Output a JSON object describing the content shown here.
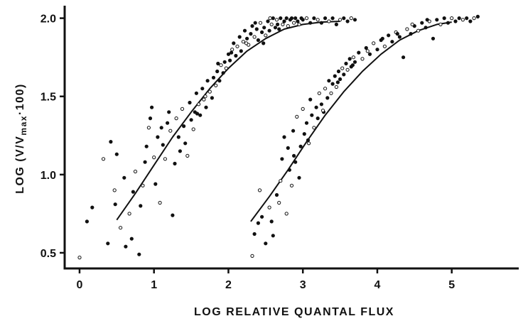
{
  "chart_data": {
    "type": "scatter",
    "xlabel": "LOG RELATIVE QUANTAL FLUX",
    "ylabel": {
      "prefix": "LOG (V/V",
      "subscript": "max",
      "suffix": "·100)"
    },
    "xlim": [
      -0.2,
      5.9
    ],
    "ylim": [
      0.4,
      2.08
    ],
    "x_ticks": [
      0,
      1,
      2,
      3,
      4,
      5
    ],
    "x_tick_labels": [
      "0",
      "1",
      "2",
      "3",
      "4",
      "5"
    ],
    "y_ticks": [
      0.5,
      1.0,
      1.5,
      2.0
    ],
    "y_tick_labels": [
      "0.5",
      "1.0",
      "1.5",
      "2.0"
    ],
    "grid": false,
    "colors": {
      "ink": "#111111",
      "background": "#ffffff"
    },
    "series": [
      {
        "points": [
          [
            0.0,
            0.47
          ],
          [
            0.1,
            0.7
          ],
          [
            0.17,
            0.79
          ],
          [
            0.32,
            1.1
          ],
          [
            0.38,
            0.56
          ],
          [
            0.42,
            1.21
          ],
          [
            0.47,
            0.9
          ],
          [
            0.48,
            0.81
          ],
          [
            0.5,
            1.13
          ],
          [
            0.55,
            0.66
          ],
          [
            0.6,
            0.98
          ],
          [
            0.62,
            0.54
          ],
          [
            0.67,
            0.75
          ],
          [
            0.7,
            0.59
          ],
          [
            0.72,
            0.89
          ],
          [
            0.75,
            1.02
          ],
          [
            0.8,
            0.49
          ],
          [
            0.82,
            0.8
          ],
          [
            0.85,
            0.93
          ],
          [
            0.88,
            1.08
          ],
          [
            0.9,
            1.18
          ],
          [
            0.93,
            1.3
          ],
          [
            0.95,
            1.36
          ],
          [
            0.97,
            1.43
          ],
          [
            1.0,
            1.11
          ],
          [
            1.02,
            0.94
          ],
          [
            1.05,
            1.24
          ],
          [
            1.08,
            0.82
          ],
          [
            1.1,
            1.3
          ],
          [
            1.12,
            1.19
          ],
          [
            1.15,
            1.1
          ],
          [
            1.18,
            1.33
          ],
          [
            1.2,
            1.4
          ],
          [
            1.22,
            1.28
          ],
          [
            1.25,
            0.74
          ],
          [
            1.28,
            1.07
          ],
          [
            1.3,
            1.36
          ],
          [
            1.33,
            1.24
          ],
          [
            1.35,
            1.15
          ],
          [
            1.38,
            1.42
          ],
          [
            1.4,
            1.31
          ],
          [
            1.42,
            1.2
          ],
          [
            1.45,
            1.12
          ],
          [
            1.48,
            1.46
          ],
          [
            1.5,
            1.35
          ],
          [
            1.53,
            1.29
          ],
          [
            1.55,
            1.4
          ],
          [
            1.57,
            1.52
          ],
          [
            1.6,
            1.45
          ],
          [
            1.62,
            1.38
          ],
          [
            1.65,
            1.55
          ],
          [
            1.67,
            1.48
          ],
          [
            1.7,
            1.43
          ],
          [
            1.72,
            1.6
          ],
          [
            1.75,
            1.53
          ],
          [
            1.78,
            1.49
          ],
          [
            1.8,
            1.62
          ],
          [
            1.83,
            1.57
          ],
          [
            1.85,
            1.66
          ],
          [
            1.88,
            1.6
          ],
          [
            1.9,
            1.7
          ],
          [
            1.93,
            1.65
          ],
          [
            1.95,
            1.72
          ],
          [
            1.97,
            1.68
          ],
          [
            2.0,
            1.77
          ],
          [
            2.02,
            1.73
          ],
          [
            2.05,
            1.8
          ],
          [
            2.07,
            1.84
          ],
          [
            2.1,
            1.76
          ],
          [
            2.12,
            1.82
          ],
          [
            2.15,
            1.88
          ],
          [
            2.17,
            1.79
          ],
          [
            2.2,
            1.85
          ],
          [
            2.22,
            1.92
          ],
          [
            2.25,
            1.87
          ],
          [
            2.27,
            1.83
          ],
          [
            2.3,
            1.9
          ],
          [
            2.32,
            1.95
          ],
          [
            2.35,
            1.88
          ],
          [
            2.38,
            1.93
          ],
          [
            2.4,
            1.86
          ],
          [
            2.43,
            1.97
          ],
          [
            2.45,
            1.91
          ],
          [
            2.48,
            1.94
          ],
          [
            2.5,
            1.89
          ],
          [
            2.53,
            1.98
          ],
          [
            2.55,
            1.92
          ],
          [
            2.58,
            1.96
          ],
          [
            2.6,
            2.0
          ],
          [
            2.63,
            1.94
          ],
          [
            2.65,
            1.99
          ],
          [
            2.68,
            1.93
          ],
          [
            2.7,
            2.0
          ],
          [
            2.73,
            1.96
          ],
          [
            2.75,
            1.98
          ],
          [
            2.78,
            2.0
          ],
          [
            2.8,
            1.95
          ],
          [
            2.83,
            1.99
          ],
          [
            2.85,
            2.0
          ],
          [
            2.88,
            1.97
          ],
          [
            2.9,
            2.0
          ],
          [
            2.93,
            1.98
          ],
          [
            2.95,
            1.96
          ],
          [
            2.98,
            2.0
          ],
          [
            3.0,
            1.99
          ],
          [
            3.05,
            2.0
          ],
          [
            3.1,
            1.97
          ],
          [
            3.15,
            2.0
          ],
          [
            3.2,
            1.99
          ],
          [
            3.25,
            1.97
          ],
          [
            3.3,
            2.0
          ],
          [
            3.35,
            1.98
          ],
          [
            3.4,
            2.0
          ],
          [
            3.45,
            1.96
          ],
          [
            3.5,
            1.99
          ],
          [
            3.55,
            2.0
          ],
          [
            3.6,
            1.98
          ],
          [
            3.65,
            2.0
          ],
          [
            3.7,
            1.99
          ],
          [
            1.58,
            1.39
          ],
          [
            1.69,
            1.5
          ],
          [
            1.86,
            1.71
          ],
          [
            2.04,
            1.78
          ],
          [
            2.24,
            1.84
          ],
          [
            2.36,
            1.97
          ],
          [
            2.47,
            1.84
          ],
          [
            2.56,
            2.0
          ],
          [
            2.66,
            1.96
          ]
        ],
        "fit": [
          [
            0.5,
            0.71
          ],
          [
            0.75,
            0.88
          ],
          [
            1.0,
            1.06
          ],
          [
            1.25,
            1.24
          ],
          [
            1.5,
            1.4
          ],
          [
            1.75,
            1.55
          ],
          [
            2.0,
            1.68
          ],
          [
            2.25,
            1.79
          ],
          [
            2.5,
            1.87
          ],
          [
            2.75,
            1.93
          ],
          [
            3.0,
            1.96
          ],
          [
            3.25,
            1.975
          ],
          [
            3.5,
            1.98
          ]
        ]
      },
      {
        "points": [
          [
            2.32,
            0.48
          ],
          [
            2.35,
            0.62
          ],
          [
            2.4,
            0.69
          ],
          [
            2.42,
            0.9
          ],
          [
            2.45,
            0.73
          ],
          [
            2.5,
            0.56
          ],
          [
            2.55,
            0.79
          ],
          [
            2.6,
            0.61
          ],
          [
            2.65,
            0.87
          ],
          [
            2.7,
            0.96
          ],
          [
            2.72,
            1.1
          ],
          [
            2.75,
            1.24
          ],
          [
            2.78,
            0.75
          ],
          [
            2.8,
            1.17
          ],
          [
            2.82,
            1.03
          ],
          [
            2.85,
            0.93
          ],
          [
            2.87,
            1.28
          ],
          [
            2.9,
            1.08
          ],
          [
            2.92,
            1.37
          ],
          [
            2.95,
            0.98
          ],
          [
            2.97,
            1.18
          ],
          [
            3.0,
            1.42
          ],
          [
            3.02,
            1.26
          ],
          [
            3.05,
            1.33
          ],
          [
            3.08,
            1.2
          ],
          [
            3.1,
            1.48
          ],
          [
            3.12,
            1.38
          ],
          [
            3.15,
            1.3
          ],
          [
            3.18,
            1.43
          ],
          [
            3.2,
            1.36
          ],
          [
            3.22,
            1.52
          ],
          [
            3.25,
            1.45
          ],
          [
            3.28,
            1.4
          ],
          [
            3.3,
            1.55
          ],
          [
            3.33,
            1.49
          ],
          [
            3.35,
            1.6
          ],
          [
            3.38,
            1.52
          ],
          [
            3.4,
            1.58
          ],
          [
            3.43,
            1.63
          ],
          [
            3.45,
            1.56
          ],
          [
            3.48,
            1.66
          ],
          [
            3.5,
            1.61
          ],
          [
            3.53,
            1.68
          ],
          [
            3.55,
            1.64
          ],
          [
            3.58,
            1.71
          ],
          [
            3.6,
            1.67
          ],
          [
            3.63,
            1.74
          ],
          [
            3.65,
            1.69
          ],
          [
            3.68,
            1.75
          ],
          [
            3.7,
            1.72
          ],
          [
            3.75,
            1.78
          ],
          [
            3.8,
            1.74
          ],
          [
            3.85,
            1.81
          ],
          [
            3.9,
            1.77
          ],
          [
            3.95,
            1.84
          ],
          [
            4.0,
            1.8
          ],
          [
            4.05,
            1.86
          ],
          [
            4.1,
            1.82
          ],
          [
            4.15,
            1.89
          ],
          [
            4.2,
            1.85
          ],
          [
            4.25,
            1.91
          ],
          [
            4.3,
            1.88
          ],
          [
            4.35,
            1.75
          ],
          [
            4.4,
            1.93
          ],
          [
            4.45,
            1.9
          ],
          [
            4.5,
            1.95
          ],
          [
            4.55,
            1.92
          ],
          [
            4.6,
            1.97
          ],
          [
            4.65,
            1.94
          ],
          [
            4.7,
            1.98
          ],
          [
            4.75,
            1.87
          ],
          [
            4.8,
            1.99
          ],
          [
            4.85,
            1.96
          ],
          [
            4.9,
            2.0
          ],
          [
            4.95,
            1.97
          ],
          [
            5.0,
            2.0
          ],
          [
            5.05,
            1.98
          ],
          [
            5.1,
            2.0
          ],
          [
            5.15,
            1.99
          ],
          [
            5.2,
            2.0
          ],
          [
            5.25,
            1.98
          ],
          [
            5.3,
            2.0
          ],
          [
            5.35,
            2.01
          ],
          [
            2.58,
            0.7
          ],
          [
            2.68,
            0.82
          ],
          [
            2.88,
            1.12
          ],
          [
            3.07,
            1.22
          ],
          [
            3.27,
            1.41
          ],
          [
            3.47,
            1.59
          ],
          [
            3.67,
            1.7
          ],
          [
            3.87,
            1.79
          ],
          [
            4.07,
            1.87
          ],
          [
            4.27,
            1.9
          ],
          [
            4.47,
            1.96
          ],
          [
            4.67,
            1.99
          ]
        ],
        "fit": [
          [
            2.3,
            0.7
          ],
          [
            2.55,
            0.86
          ],
          [
            2.8,
            1.03
          ],
          [
            3.05,
            1.21
          ],
          [
            3.3,
            1.38
          ],
          [
            3.55,
            1.53
          ],
          [
            3.8,
            1.66
          ],
          [
            4.05,
            1.77
          ],
          [
            4.3,
            1.86
          ],
          [
            4.55,
            1.92
          ],
          [
            4.8,
            1.96
          ],
          [
            5.0,
            1.975
          ]
        ]
      }
    ]
  }
}
